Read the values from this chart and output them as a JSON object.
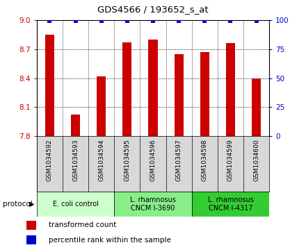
{
  "title": "GDS4566 / 193652_s_at",
  "samples": [
    "GSM1034592",
    "GSM1034593",
    "GSM1034594",
    "GSM1034595",
    "GSM1034596",
    "GSM1034597",
    "GSM1034598",
    "GSM1034599",
    "GSM1034600"
  ],
  "transformed_counts": [
    8.85,
    8.02,
    8.42,
    8.77,
    8.8,
    8.65,
    8.67,
    8.76,
    8.4
  ],
  "percentile_ranks": [
    100,
    100,
    100,
    100,
    100,
    100,
    100,
    100,
    100
  ],
  "ylim_left": [
    7.8,
    9.0
  ],
  "yticks_left": [
    7.8,
    8.1,
    8.4,
    8.7,
    9.0
  ],
  "yticks_right": [
    0,
    25,
    50,
    75,
    100
  ],
  "bar_color": "#cc0000",
  "percentile_color": "#0000cc",
  "protocol_groups": [
    {
      "label": "E. coli control",
      "start": 0,
      "end": 3,
      "color": "#ccffcc"
    },
    {
      "label": "L. rhamnosus\nCNCM I-3690",
      "start": 3,
      "end": 6,
      "color": "#88ee88"
    },
    {
      "label": "L. rhamnosus\nCNCM I-4317",
      "start": 6,
      "end": 9,
      "color": "#33cc33"
    }
  ],
  "legend_bar_label": "transformed count",
  "legend_dot_label": "percentile rank within the sample",
  "left_tick_color": "#cc0000",
  "right_tick_color": "#0000cc",
  "sample_bg_color": "#d8d8d8",
  "chart_bg_color": "#ffffff"
}
